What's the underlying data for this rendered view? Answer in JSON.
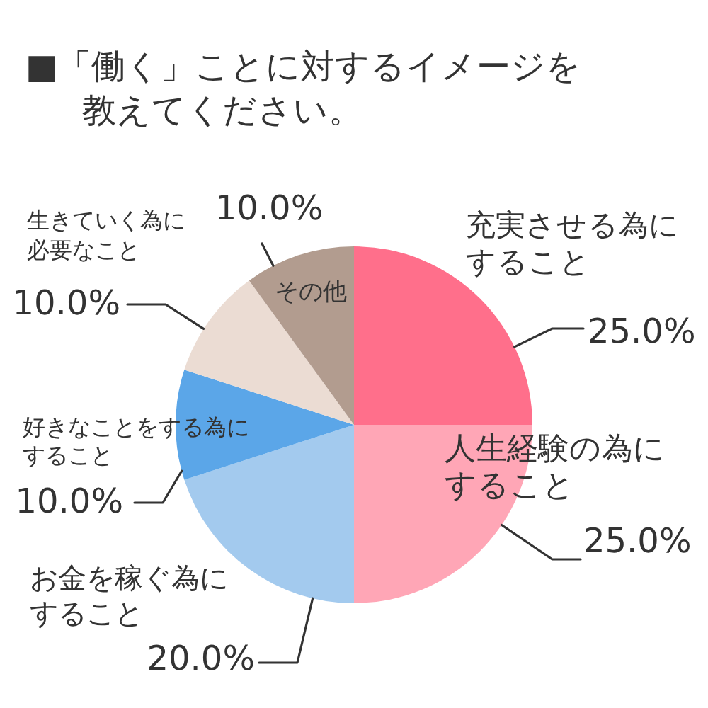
{
  "chart_data": {
    "type": "pie",
    "title": "■「働く」ことに対するイメージを教えてください。",
    "categories": [
      "充実させる為にすること",
      "人生経験の為にすること",
      "お金を稼ぐ為にすること",
      "好きなことをする為にすること",
      "生きていく為に必要なこと",
      "その他"
    ],
    "values": [
      25,
      25,
      20,
      10,
      10,
      10
    ],
    "colors": [
      "#ff6f8b",
      "#ffa6b6",
      "#a3caee",
      "#5ba6e8",
      "#ebdcd3",
      "#b29c8f"
    ],
    "value_labels": [
      "25.0%",
      "25.0%",
      "20.0%",
      "10.0%",
      "10.0%",
      "10.0%"
    ]
  }
}
